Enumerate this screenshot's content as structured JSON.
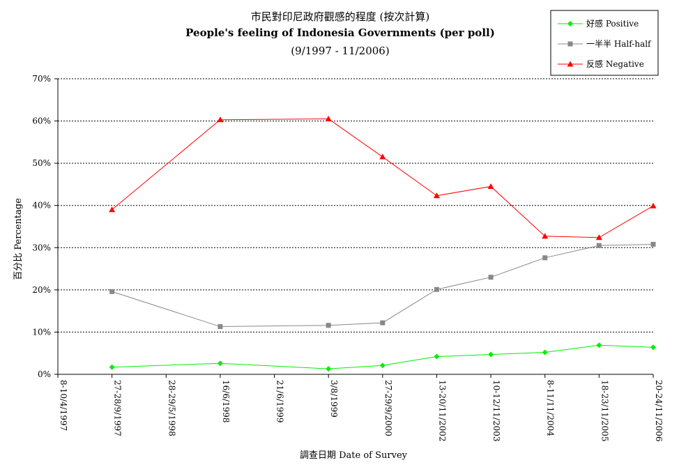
{
  "chart_data": {
    "type": "line",
    "title": "市民對印尼政府觀感的程度 (按次計算)",
    "subtitle": "People's feeling of Indonesia Governments (per poll)",
    "period": "(9/1997 - 11/2006)",
    "xlabel": "調查日期 Date of Survey",
    "ylabel": "百分比 Percentage",
    "categories": [
      "8-10/4/1997",
      "27-28/9/1997",
      "28-29/5/1998",
      "16/6/1998",
      "21/6/1999",
      "3/8/1999",
      "27-29/9/2000",
      "13-20/11/2002",
      "10-12/11/2003",
      "8-11/11/2004",
      "18-23/11/2005",
      "20-24/11/2006"
    ],
    "ylim": [
      0,
      70
    ],
    "yticks": [
      "0%",
      "10%",
      "20%",
      "30%",
      "40%",
      "50%",
      "60%",
      "70%"
    ],
    "grid": "horizontal dashed",
    "legend_position": "top-right",
    "series": [
      {
        "name": "好感 Positive",
        "color": "#00ee00",
        "marker": "diamond",
        "points": [
          [
            1,
            1.7
          ],
          [
            3,
            2.6
          ],
          [
            5,
            1.3
          ],
          [
            6,
            2.1
          ],
          [
            7,
            4.2
          ],
          [
            8,
            4.7
          ],
          [
            9,
            5.2
          ],
          [
            10,
            6.9
          ],
          [
            11,
            6.4
          ]
        ]
      },
      {
        "name": "一半半 Half-half",
        "color": "#888888",
        "marker": "square",
        "points": [
          [
            1,
            19.6
          ],
          [
            3,
            11.3
          ],
          [
            5,
            11.6
          ],
          [
            6,
            12.2
          ],
          [
            7,
            20.1
          ],
          [
            8,
            23.0
          ],
          [
            9,
            27.6
          ],
          [
            10,
            30.5
          ],
          [
            11,
            30.8
          ]
        ]
      },
      {
        "name": "反感 Negative",
        "color": "#ff0000",
        "marker": "triangle",
        "points": [
          [
            1,
            39.0
          ],
          [
            3,
            60.3
          ],
          [
            5,
            60.5
          ],
          [
            6,
            51.5
          ],
          [
            7,
            42.3
          ],
          [
            8,
            44.5
          ],
          [
            9,
            32.7
          ],
          [
            10,
            32.4
          ],
          [
            11,
            39.9
          ]
        ]
      }
    ]
  }
}
